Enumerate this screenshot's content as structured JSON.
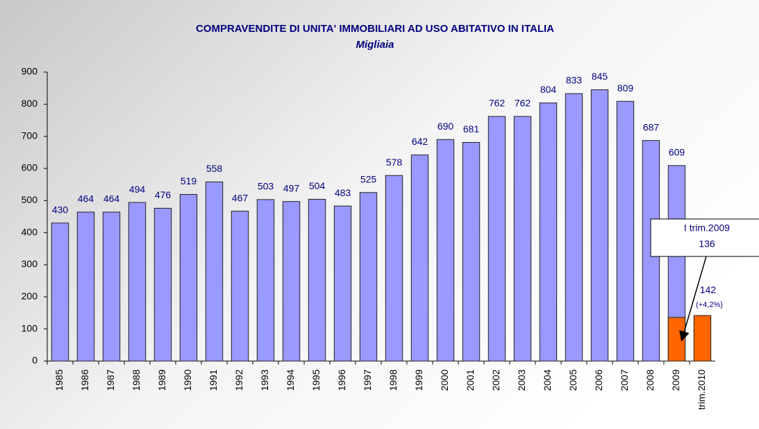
{
  "chart_data": {
    "type": "bar",
    "title": "COMPRAVENDITE DI UNITA' IMMOBILIARI AD USO ABITATIVO IN ITALIA",
    "subtitle": "Migliaia",
    "categories": [
      "1985",
      "1986",
      "1987",
      "1988",
      "1989",
      "1990",
      "1991",
      "1992",
      "1993",
      "1994",
      "1995",
      "1996",
      "1997",
      "1998",
      "1999",
      "2000",
      "2001",
      "2002",
      "2003",
      "2004",
      "2005",
      "2006",
      "2007",
      "2008",
      "2009",
      "trim.2010"
    ],
    "series": [
      {
        "color": "#9999ff",
        "values": [
          430,
          464,
          464,
          494,
          476,
          519,
          558,
          467,
          503,
          497,
          504,
          483,
          525,
          578,
          642,
          690,
          681,
          762,
          762,
          804,
          833,
          845,
          809,
          687,
          609,
          null
        ]
      },
      {
        "color": "#ff6600",
        "values": [
          null,
          null,
          null,
          null,
          null,
          null,
          null,
          null,
          null,
          null,
          null,
          null,
          null,
          null,
          null,
          null,
          null,
          null,
          null,
          null,
          null,
          null,
          null,
          null,
          136,
          142
        ]
      }
    ],
    "annotations": [
      "I trim.2009",
      "(+4,2%)"
    ],
    "ylim": [
      0,
      900
    ],
    "yticks": [
      0,
      100,
      200,
      300,
      400,
      500,
      600,
      700,
      800,
      900
    ],
    "grid": false
  }
}
